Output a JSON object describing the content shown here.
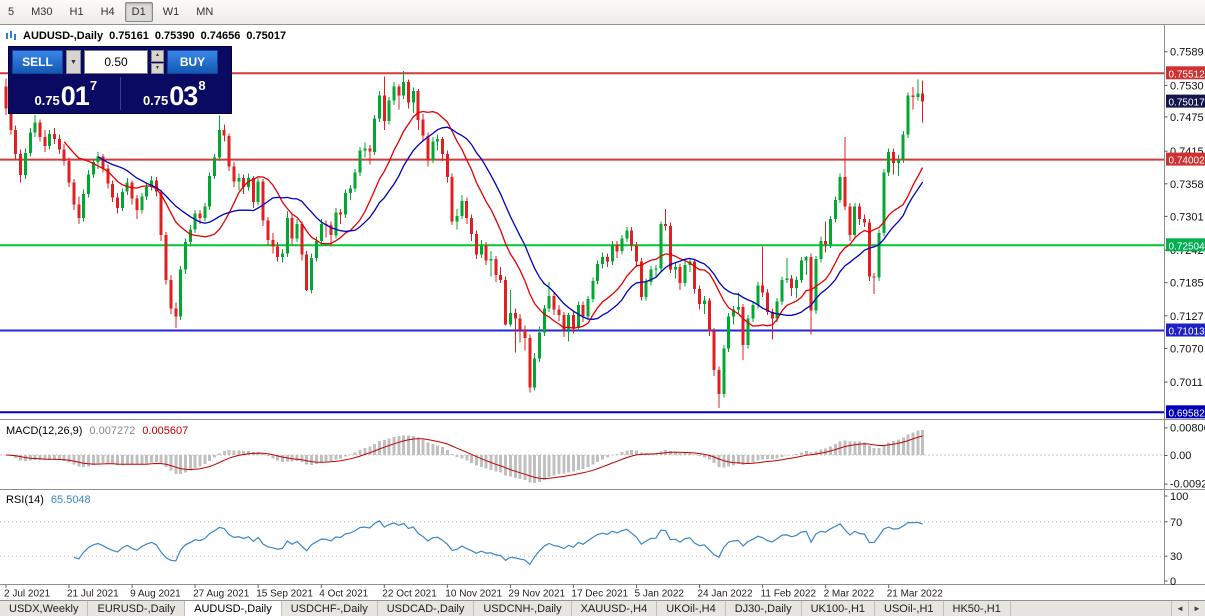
{
  "toolbar": {
    "timeframes": [
      "5",
      "M30",
      "H1",
      "H4",
      "D1",
      "W1",
      "MN"
    ],
    "active_timeframe": "D1"
  },
  "chart_header": {
    "symbol_period": "AUDUSD-,Daily",
    "open": "0.75161",
    "high": "0.75390",
    "low": "0.74656",
    "close": "0.75017"
  },
  "trade_panel": {
    "sell_label": "SELL",
    "buy_label": "BUY",
    "volume": "0.50",
    "sell_price": {
      "base": "0.75",
      "pips": "01",
      "pipette": "7"
    },
    "buy_price": {
      "base": "0.75",
      "pips": "03",
      "pipette": "8"
    }
  },
  "icons": {
    "volume_dropdown": "▼",
    "spin_up": "▲",
    "spin_down": "▼",
    "scroll_left": "◄",
    "scroll_right": "►"
  },
  "bottom_tabs": [
    {
      "label": "USDX,Weekly",
      "active": false
    },
    {
      "label": "EURUSD-,Daily",
      "active": false
    },
    {
      "label": "AUDUSD-,Daily",
      "active": true
    },
    {
      "label": "USDCHF-,Daily",
      "active": false
    },
    {
      "label": "USDCAD-,Daily",
      "active": false
    },
    {
      "label": "USDCNH-,Daily",
      "active": false
    },
    {
      "label": "XAUUSD-,H4",
      "active": false
    },
    {
      "label": "UKOil-,H4",
      "active": false
    },
    {
      "label": "DJ30-,Daily",
      "active": false
    },
    {
      "label": "UK100-,H1",
      "active": false
    },
    {
      "label": "USOil-,H1",
      "active": false
    },
    {
      "label": "HK50-,H1",
      "active": false
    }
  ],
  "chart_data": {
    "type": "candlestick",
    "symbol": "AUDUSD-",
    "timeframe": "Daily",
    "colors": {
      "up": "#00a832",
      "down": "#e02020",
      "macd_hist": "#c0c0c0",
      "macd_signal": "#c40000",
      "rsi_line": "#3a87c8"
    },
    "y_axis_ticks": [
      "0.7589",
      "0.7530",
      "0.7475",
      "0.7415",
      "0.7358",
      "0.7301",
      "0.7242",
      "0.7185",
      "0.7127",
      "0.7070",
      "0.7011"
    ],
    "price_range_hint": [
      0.695,
      0.7627
    ],
    "horizontal_lines": [
      {
        "label": "0.75512",
        "price": 0.75512,
        "color": "#cf3a3a",
        "badge": "#d03030",
        "line": true
      },
      {
        "label": "0.75017",
        "price": 0.75017,
        "color": "#15154d",
        "badge": "#15154d",
        "line": false,
        "role": "current-bid"
      },
      {
        "label": "0.74002",
        "price": 0.74002,
        "color": "#cf3a3a",
        "badge": "#d03030",
        "line": true
      },
      {
        "label": "0.72504",
        "price": 0.72504,
        "color": "#00c832",
        "badge": "#00b050",
        "line": true
      },
      {
        "label": "0.71013",
        "price": 0.71013,
        "color": "#2525d8",
        "badge": "#2020c8",
        "line": true
      },
      {
        "label": "0.69582",
        "price": 0.69582,
        "color": "#0000c8",
        "badge": "#0000b8",
        "line": true
      }
    ],
    "overlays": [
      {
        "name": "MA fast",
        "type": "sma",
        "period": 13,
        "color": "#e60000"
      },
      {
        "name": "MA slow",
        "type": "sma",
        "period": 20,
        "color": "#0000c0"
      }
    ],
    "indicators": [
      {
        "name": "MACD",
        "label": "MACD(12,26,9)",
        "params": [
          12,
          26,
          9
        ],
        "values_text": [
          "0.007272",
          "0.005607"
        ],
        "axis_labels": [
          "0.008061",
          "0.00",
          "-0.00928"
        ]
      },
      {
        "name": "RSI",
        "label": "RSI(14)",
        "params": [
          14
        ],
        "values_text": [
          "65.5048"
        ],
        "axis_labels": [
          "100",
          "70",
          "30",
          "0"
        ],
        "levels": [
          70,
          30
        ]
      }
    ],
    "x_labels": [
      "2 Jul 2021",
      "21 Jul 2021",
      "9 Aug 2021",
      "27 Aug 2021",
      "15 Sep 2021",
      "4 Oct 2021",
      "22 Oct 2021",
      "10 Nov 2021",
      "29 Nov 2021",
      "17 Dec 2021",
      "5 Jan 2022",
      "24 Jan 2022",
      "11 Feb 2022",
      "2 Mar 2022",
      "21 Mar 2022"
    ],
    "x_label_step": 13,
    "candles": [
      [
        0.7528,
        0.7542,
        0.7478,
        0.749
      ],
      [
        0.749,
        0.7498,
        0.7444,
        0.7452
      ],
      [
        0.7452,
        0.746,
        0.74,
        0.741
      ],
      [
        0.741,
        0.7418,
        0.736,
        0.7373
      ],
      [
        0.7373,
        0.742,
        0.7366,
        0.7412
      ],
      [
        0.7412,
        0.7456,
        0.7406,
        0.7448
      ],
      [
        0.7448,
        0.7478,
        0.744,
        0.7465
      ],
      [
        0.7465,
        0.747,
        0.7432,
        0.744
      ],
      [
        0.744,
        0.7452,
        0.7414,
        0.7424
      ],
      [
        0.7424,
        0.7452,
        0.7418,
        0.7445
      ],
      [
        0.7445,
        0.7456,
        0.7428,
        0.7436
      ],
      [
        0.7436,
        0.7444,
        0.741,
        0.7418
      ],
      [
        0.7418,
        0.7428,
        0.739,
        0.7398
      ],
      [
        0.7398,
        0.7404,
        0.7352,
        0.736
      ],
      [
        0.736,
        0.7366,
        0.7312,
        0.7322
      ],
      [
        0.7322,
        0.7336,
        0.7288,
        0.7298
      ],
      [
        0.7298,
        0.7348,
        0.7292,
        0.734
      ],
      [
        0.734,
        0.7382,
        0.7334,
        0.7374
      ],
      [
        0.7374,
        0.7402,
        0.7368,
        0.7396
      ],
      [
        0.7396,
        0.7414,
        0.7384,
        0.7406
      ],
      [
        0.7406,
        0.741,
        0.7378,
        0.7385
      ],
      [
        0.7385,
        0.7392,
        0.735,
        0.7358
      ],
      [
        0.7358,
        0.7364,
        0.7326,
        0.7334
      ],
      [
        0.7334,
        0.7342,
        0.7306,
        0.7316
      ],
      [
        0.7316,
        0.735,
        0.731,
        0.7344
      ],
      [
        0.7344,
        0.7368,
        0.7338,
        0.736
      ],
      [
        0.736,
        0.7364,
        0.7322,
        0.7332
      ],
      [
        0.7332,
        0.7338,
        0.7296,
        0.7312
      ],
      [
        0.7312,
        0.7342,
        0.7306,
        0.7336
      ],
      [
        0.7336,
        0.736,
        0.733,
        0.7352
      ],
      [
        0.7352,
        0.7372,
        0.7346,
        0.7364
      ],
      [
        0.7364,
        0.737,
        0.7336,
        0.7344
      ],
      [
        0.7344,
        0.7348,
        0.7258,
        0.7268
      ],
      [
        0.7268,
        0.7274,
        0.7182,
        0.719
      ],
      [
        0.719,
        0.7198,
        0.713,
        0.714
      ],
      [
        0.714,
        0.715,
        0.7106,
        0.7126
      ],
      [
        0.7126,
        0.7214,
        0.712,
        0.7208
      ],
      [
        0.7208,
        0.7262,
        0.72,
        0.7256
      ],
      [
        0.7256,
        0.7286,
        0.7248,
        0.7278
      ],
      [
        0.7278,
        0.7312,
        0.7272,
        0.7306
      ],
      [
        0.7306,
        0.7312,
        0.7288,
        0.7298
      ],
      [
        0.7298,
        0.7324,
        0.7292,
        0.7318
      ],
      [
        0.7318,
        0.7378,
        0.7312,
        0.7372
      ],
      [
        0.7372,
        0.741,
        0.7366,
        0.7404
      ],
      [
        0.7404,
        0.7477,
        0.7398,
        0.7452
      ],
      [
        0.7452,
        0.7462,
        0.7432,
        0.7442
      ],
      [
        0.7442,
        0.7446,
        0.738,
        0.7388
      ],
      [
        0.7388,
        0.7396,
        0.7352,
        0.7362
      ],
      [
        0.7362,
        0.7376,
        0.7346,
        0.7368
      ],
      [
        0.7368,
        0.7374,
        0.734,
        0.7352
      ],
      [
        0.7352,
        0.7376,
        0.7346,
        0.7368
      ],
      [
        0.7368,
        0.7372,
        0.7316,
        0.7326
      ],
      [
        0.7326,
        0.7368,
        0.732,
        0.7362
      ],
      [
        0.7362,
        0.7366,
        0.7284,
        0.7294
      ],
      [
        0.7294,
        0.73,
        0.725,
        0.726
      ],
      [
        0.726,
        0.7272,
        0.7236,
        0.7248
      ],
      [
        0.7248,
        0.7256,
        0.7222,
        0.723
      ],
      [
        0.723,
        0.7244,
        0.722,
        0.7236
      ],
      [
        0.7236,
        0.731,
        0.723,
        0.7298
      ],
      [
        0.7298,
        0.7304,
        0.7252,
        0.7262
      ],
      [
        0.7262,
        0.7296,
        0.7256,
        0.7288
      ],
      [
        0.7288,
        0.7292,
        0.7224,
        0.7234
      ],
      [
        0.7234,
        0.724,
        0.717,
        0.7172
      ],
      [
        0.7172,
        0.7236,
        0.7166,
        0.7228
      ],
      [
        0.7228,
        0.7266,
        0.7222,
        0.7258
      ],
      [
        0.7258,
        0.7296,
        0.7252,
        0.7288
      ],
      [
        0.7288,
        0.7294,
        0.7264,
        0.7286
      ],
      [
        0.7286,
        0.7292,
        0.7248,
        0.7268
      ],
      [
        0.7268,
        0.7316,
        0.7262,
        0.7308
      ],
      [
        0.7308,
        0.7314,
        0.7288,
        0.7304
      ],
      [
        0.7304,
        0.7348,
        0.7298,
        0.7342
      ],
      [
        0.7342,
        0.7356,
        0.733,
        0.735
      ],
      [
        0.735,
        0.7384,
        0.7344,
        0.7378
      ],
      [
        0.7378,
        0.7422,
        0.7372,
        0.7416
      ],
      [
        0.7416,
        0.743,
        0.7404,
        0.742
      ],
      [
        0.742,
        0.7426,
        0.7392,
        0.7414
      ],
      [
        0.7414,
        0.7478,
        0.7408,
        0.7472
      ],
      [
        0.7472,
        0.752,
        0.7466,
        0.7512
      ],
      [
        0.7512,
        0.7546,
        0.7452,
        0.7468
      ],
      [
        0.7468,
        0.751,
        0.7462,
        0.7504
      ],
      [
        0.7504,
        0.7536,
        0.7496,
        0.7528
      ],
      [
        0.7528,
        0.7532,
        0.7488,
        0.7512
      ],
      [
        0.7512,
        0.7555,
        0.7506,
        0.7536
      ],
      [
        0.7536,
        0.754,
        0.749,
        0.75
      ],
      [
        0.75,
        0.7526,
        0.7482,
        0.752
      ],
      [
        0.752,
        0.7524,
        0.7452,
        0.747
      ],
      [
        0.747,
        0.748,
        0.7432,
        0.7442
      ],
      [
        0.7442,
        0.7448,
        0.7388,
        0.74
      ],
      [
        0.74,
        0.744,
        0.7394,
        0.7432
      ],
      [
        0.7432,
        0.7444,
        0.7416,
        0.7436
      ],
      [
        0.7436,
        0.744,
        0.7398,
        0.741
      ],
      [
        0.741,
        0.7416,
        0.736,
        0.737
      ],
      [
        0.737,
        0.7376,
        0.7286,
        0.7292
      ],
      [
        0.7292,
        0.7314,
        0.7278,
        0.7302
      ],
      [
        0.7302,
        0.7338,
        0.7296,
        0.7328
      ],
      [
        0.7328,
        0.7334,
        0.7288,
        0.7298
      ],
      [
        0.7298,
        0.7304,
        0.7258,
        0.727
      ],
      [
        0.727,
        0.7276,
        0.7226,
        0.7234
      ],
      [
        0.7234,
        0.726,
        0.7228,
        0.725
      ],
      [
        0.725,
        0.7256,
        0.7216,
        0.7224
      ],
      [
        0.7224,
        0.724,
        0.7196,
        0.7226
      ],
      [
        0.7226,
        0.7232,
        0.7186,
        0.7198
      ],
      [
        0.7198,
        0.7212,
        0.7184,
        0.719
      ],
      [
        0.719,
        0.7196,
        0.711,
        0.7112
      ],
      [
        0.7112,
        0.7172,
        0.7108,
        0.7132
      ],
      [
        0.7132,
        0.714,
        0.7063,
        0.7122
      ],
      [
        0.7122,
        0.713,
        0.708,
        0.7102
      ],
      [
        0.7102,
        0.711,
        0.7066,
        0.7088
      ],
      [
        0.7088,
        0.7094,
        0.6993,
        0.7002
      ],
      [
        0.7002,
        0.7062,
        0.6996,
        0.7052
      ],
      [
        0.7052,
        0.7108,
        0.7046,
        0.7098
      ],
      [
        0.7098,
        0.7146,
        0.7092,
        0.714
      ],
      [
        0.714,
        0.7186,
        0.7134,
        0.7162
      ],
      [
        0.7162,
        0.7168,
        0.7128,
        0.7138
      ],
      [
        0.7138,
        0.7146,
        0.7118,
        0.7128
      ],
      [
        0.7128,
        0.7134,
        0.709,
        0.7102
      ],
      [
        0.7102,
        0.7132,
        0.7082,
        0.7128
      ],
      [
        0.7128,
        0.7136,
        0.7096,
        0.7106
      ],
      [
        0.7106,
        0.7152,
        0.71,
        0.7146
      ],
      [
        0.7146,
        0.7152,
        0.7116,
        0.7126
      ],
      [
        0.7126,
        0.7162,
        0.712,
        0.7156
      ],
      [
        0.7156,
        0.7194,
        0.715,
        0.7188
      ],
      [
        0.7188,
        0.7224,
        0.7182,
        0.7218
      ],
      [
        0.7218,
        0.7238,
        0.721,
        0.723
      ],
      [
        0.723,
        0.7236,
        0.7212,
        0.7222
      ],
      [
        0.7222,
        0.7258,
        0.7216,
        0.7252
      ],
      [
        0.7252,
        0.7258,
        0.7228,
        0.724
      ],
      [
        0.724,
        0.7268,
        0.7234,
        0.7262
      ],
      [
        0.7262,
        0.7282,
        0.7256,
        0.7276
      ],
      [
        0.7276,
        0.7282,
        0.724,
        0.725
      ],
      [
        0.725,
        0.7256,
        0.7212,
        0.7222
      ],
      [
        0.7222,
        0.7228,
        0.7154,
        0.716
      ],
      [
        0.716,
        0.7192,
        0.7154,
        0.7186
      ],
      [
        0.7186,
        0.7214,
        0.718,
        0.7208
      ],
      [
        0.7208,
        0.7216,
        0.7196,
        0.721
      ],
      [
        0.721,
        0.7292,
        0.7204,
        0.7288
      ],
      [
        0.7288,
        0.7314,
        0.7276,
        0.7284
      ],
      [
        0.7284,
        0.729,
        0.7202,
        0.7208
      ],
      [
        0.7208,
        0.722,
        0.7192,
        0.7212
      ],
      [
        0.7212,
        0.7218,
        0.7172,
        0.7184
      ],
      [
        0.7184,
        0.7222,
        0.7178,
        0.7216
      ],
      [
        0.7216,
        0.7228,
        0.7204,
        0.7222
      ],
      [
        0.7222,
        0.7226,
        0.7166,
        0.7174
      ],
      [
        0.7174,
        0.718,
        0.7138,
        0.7148
      ],
      [
        0.7148,
        0.7162,
        0.713,
        0.7154
      ],
      [
        0.7154,
        0.7158,
        0.7092,
        0.71
      ],
      [
        0.71,
        0.7106,
        0.7022,
        0.7032
      ],
      [
        0.7032,
        0.7038,
        0.6966,
        0.699
      ],
      [
        0.699,
        0.7076,
        0.6984,
        0.707
      ],
      [
        0.707,
        0.7132,
        0.7064,
        0.7126
      ],
      [
        0.7126,
        0.7144,
        0.7112,
        0.7138
      ],
      [
        0.7138,
        0.7168,
        0.713,
        0.7142
      ],
      [
        0.7142,
        0.7148,
        0.705,
        0.7076
      ],
      [
        0.7076,
        0.7128,
        0.707,
        0.7122
      ],
      [
        0.7122,
        0.7152,
        0.7116,
        0.7146
      ],
      [
        0.7146,
        0.7186,
        0.714,
        0.718
      ],
      [
        0.718,
        0.7248,
        0.716,
        0.7168
      ],
      [
        0.7168,
        0.7174,
        0.7128,
        0.7134
      ],
      [
        0.7134,
        0.714,
        0.7086,
        0.7122
      ],
      [
        0.7122,
        0.7158,
        0.7116,
        0.7152
      ],
      [
        0.7152,
        0.7196,
        0.7146,
        0.719
      ],
      [
        0.719,
        0.7228,
        0.7184,
        0.7192
      ],
      [
        0.7192,
        0.7198,
        0.7162,
        0.7176
      ],
      [
        0.7176,
        0.7196,
        0.7158,
        0.719
      ],
      [
        0.719,
        0.723,
        0.7184,
        0.7224
      ],
      [
        0.7224,
        0.7232,
        0.7198,
        0.723
      ],
      [
        0.723,
        0.7236,
        0.7094,
        0.7136
      ],
      [
        0.7136,
        0.7232,
        0.713,
        0.7226
      ],
      [
        0.7226,
        0.7266,
        0.722,
        0.7258
      ],
      [
        0.7258,
        0.7292,
        0.7238,
        0.7252
      ],
      [
        0.7252,
        0.7302,
        0.7246,
        0.7296
      ],
      [
        0.7296,
        0.7336,
        0.729,
        0.733
      ],
      [
        0.733,
        0.7376,
        0.7324,
        0.737
      ],
      [
        0.737,
        0.744,
        0.7312,
        0.7318
      ],
      [
        0.7318,
        0.7324,
        0.7258,
        0.7268
      ],
      [
        0.7268,
        0.7324,
        0.7262,
        0.7318
      ],
      [
        0.7318,
        0.7324,
        0.7286,
        0.7296
      ],
      [
        0.7296,
        0.7304,
        0.7282,
        0.729
      ],
      [
        0.729,
        0.7296,
        0.7188,
        0.7196
      ],
      [
        0.7196,
        0.7202,
        0.7165,
        0.7194
      ],
      [
        0.7194,
        0.7278,
        0.7188,
        0.7272
      ],
      [
        0.7272,
        0.7384,
        0.7266,
        0.7378
      ],
      [
        0.7378,
        0.742,
        0.7372,
        0.7414
      ],
      [
        0.7414,
        0.742,
        0.7374,
        0.7394
      ],
      [
        0.7394,
        0.7408,
        0.7372,
        0.74
      ],
      [
        0.74,
        0.745,
        0.7394,
        0.7444
      ],
      [
        0.7444,
        0.7518,
        0.7438,
        0.7512
      ],
      [
        0.7512,
        0.7527,
        0.7488,
        0.751
      ],
      [
        0.751,
        0.754,
        0.7504,
        0.7516
      ],
      [
        0.75161,
        0.7539,
        0.74656,
        0.75017
      ]
    ]
  }
}
